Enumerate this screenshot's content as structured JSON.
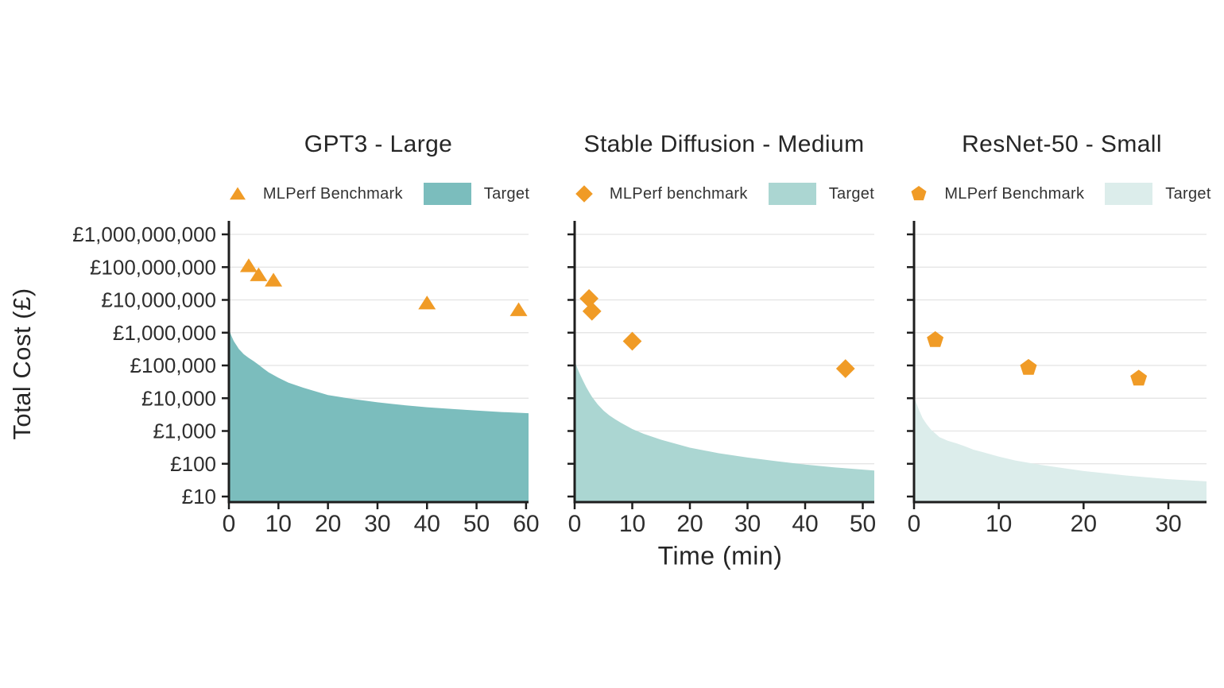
{
  "figure": {
    "ylabel": "Total Cost (£)",
    "xlabel": "Time (min)",
    "colors": {
      "marker_orange": "#F09B26",
      "axis": "#1E1E1E",
      "grid": "#E3E3E3",
      "text": "#2E2E2E"
    },
    "y_ticks": [
      {
        "label": "£1,000,000,000",
        "value": 1000000000
      },
      {
        "label": "£100,000,000",
        "value": 100000000
      },
      {
        "label": "£10,000,000",
        "value": 10000000
      },
      {
        "label": "£1,000,000",
        "value": 1000000
      },
      {
        "label": "£100,000",
        "value": 100000
      },
      {
        "label": "£10,000",
        "value": 10000
      },
      {
        "label": "£1,000",
        "value": 1000
      },
      {
        "label": "£100",
        "value": 100
      },
      {
        "label": "£10",
        "value": 10
      }
    ]
  },
  "chart_data": [
    {
      "type": "scatter+area",
      "id": "gpt3-large",
      "title": "GPT3 - Large",
      "y_scale": "log",
      "ylim": [
        10,
        1000000000
      ],
      "xlim": [
        0,
        60.5
      ],
      "x_ticks": [
        0,
        10,
        20,
        30,
        40,
        50,
        60
      ],
      "show_y_tick_labels": true,
      "legend": {
        "benchmark_label": "MLPerf Benchmark",
        "benchmark_marker": "triangle",
        "target_label": "Target"
      },
      "target_fill_color": "#7BBDBD",
      "benchmark_points": [
        {
          "t": 4,
          "cost": 110000000
        },
        {
          "t": 6,
          "cost": 58000000
        },
        {
          "t": 9,
          "cost": 40000000
        },
        {
          "t": 40,
          "cost": 8000000
        },
        {
          "t": 58.5,
          "cost": 5000000
        }
      ],
      "target_curve": [
        [
          0,
          1300000
        ],
        [
          0.5,
          800000
        ],
        [
          1,
          550000
        ],
        [
          1.5,
          420000
        ],
        [
          2,
          320000
        ],
        [
          3,
          220000
        ],
        [
          4,
          170000
        ],
        [
          5,
          135000
        ],
        [
          6,
          105000
        ],
        [
          7,
          80000
        ],
        [
          8,
          62000
        ],
        [
          10,
          42000
        ],
        [
          12,
          30000
        ],
        [
          15,
          21000
        ],
        [
          20,
          12500
        ],
        [
          25,
          9500
        ],
        [
          30,
          7500
        ],
        [
          35,
          6200
        ],
        [
          40,
          5300
        ],
        [
          45,
          4700
        ],
        [
          50,
          4200
        ],
        [
          55,
          3800
        ],
        [
          60.5,
          3500
        ]
      ]
    },
    {
      "type": "scatter+area",
      "id": "stable-diffusion-medium",
      "title": "Stable Diffusion - Medium",
      "y_scale": "log",
      "ylim": [
        10,
        1000000000
      ],
      "xlim": [
        0,
        52
      ],
      "x_ticks": [
        0,
        10,
        20,
        30,
        40,
        50
      ],
      "show_y_tick_labels": false,
      "legend": {
        "benchmark_label": "MLPerf benchmark",
        "benchmark_marker": "diamond",
        "target_label": "Target"
      },
      "target_fill_color": "#ABD6D2",
      "benchmark_points": [
        {
          "t": 2.5,
          "cost": 11000000
        },
        {
          "t": 3,
          "cost": 4500000
        },
        {
          "t": 10,
          "cost": 550000
        },
        {
          "t": 47,
          "cost": 80000
        }
      ],
      "target_curve": [
        [
          0,
          140000
        ],
        [
          0.5,
          80000
        ],
        [
          1,
          50000
        ],
        [
          1.5,
          33000
        ],
        [
          2,
          22000
        ],
        [
          2.5,
          15500
        ],
        [
          3,
          11000
        ],
        [
          4,
          6500
        ],
        [
          5,
          4200
        ],
        [
          6,
          3000
        ],
        [
          7,
          2300
        ],
        [
          8,
          1800
        ],
        [
          10,
          1150
        ],
        [
          12,
          820
        ],
        [
          15,
          540
        ],
        [
          20,
          310
        ],
        [
          25,
          210
        ],
        [
          30,
          155
        ],
        [
          35,
          120
        ],
        [
          40,
          95
        ],
        [
          45,
          78
        ],
        [
          52,
          62
        ]
      ]
    },
    {
      "type": "scatter+area",
      "id": "resnet-50-small",
      "title": "ResNet-50 - Small",
      "y_scale": "log",
      "ylim": [
        10,
        1000000000
      ],
      "xlim": [
        0,
        34.5
      ],
      "x_ticks": [
        0,
        10,
        20,
        30
      ],
      "show_y_tick_labels": false,
      "legend": {
        "benchmark_label": "MLPerf Benchmark",
        "benchmark_marker": "pentagon",
        "target_label": "Target"
      },
      "target_fill_color": "#DCEDEB",
      "benchmark_points": [
        {
          "t": 2.5,
          "cost": 600000
        },
        {
          "t": 13.5,
          "cost": 85000
        },
        {
          "t": 26.5,
          "cost": 40000
        }
      ],
      "target_curve": [
        [
          0,
          11000
        ],
        [
          0.5,
          5000
        ],
        [
          1,
          2500
        ],
        [
          1.5,
          1600
        ],
        [
          2,
          1100
        ],
        [
          3,
          650
        ],
        [
          4,
          500
        ],
        [
          5,
          420
        ],
        [
          6,
          340
        ],
        [
          7,
          270
        ],
        [
          8,
          230
        ],
        [
          10,
          165
        ],
        [
          12,
          125
        ],
        [
          15,
          92
        ],
        [
          20,
          60
        ],
        [
          25,
          44
        ],
        [
          30,
          34
        ],
        [
          34.5,
          29
        ]
      ]
    }
  ]
}
